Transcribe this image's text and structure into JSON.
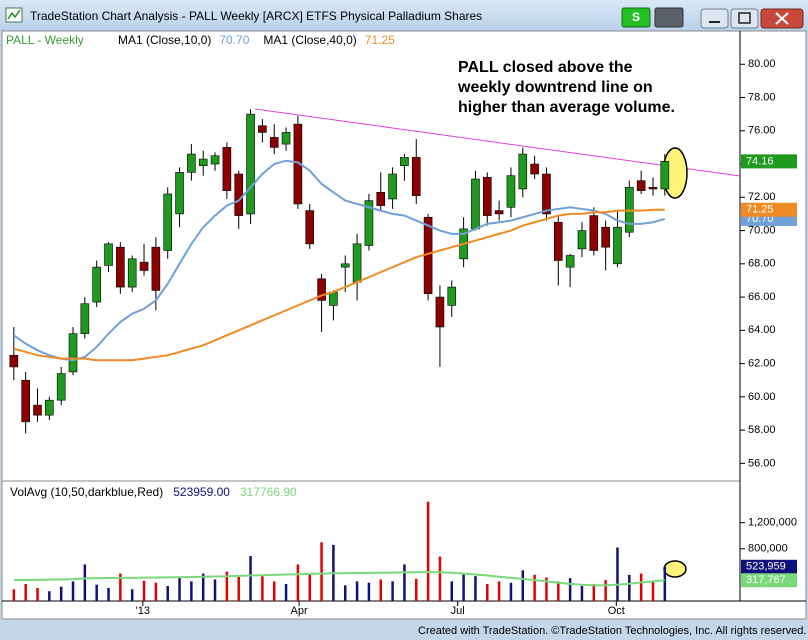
{
  "window": {
    "title": "TradeStation Chart Analysis - PALL Weekly [ARCX] ETFS Physical Palladium Shares",
    "symbol_button": "S"
  },
  "footer": "Created with TradeStation. ©TradeStation Technologies, Inc. All rights reserved.",
  "chart_data": [
    {
      "type": "candlestick",
      "title": "PALL - Weekly",
      "title_color": "#3a9a3a",
      "annotation": [
        "PALL closed above the",
        "weekly downtrend line on",
        "higher than average volume."
      ],
      "up_color": "#1f9a1f",
      "down_color": "#8b0000",
      "open": [
        62.5,
        61.0,
        59.5,
        58.9,
        59.8,
        61.5,
        63.8,
        65.7,
        67.9,
        69.0,
        66.6,
        68.1,
        69.0,
        68.8,
        71.0,
        73.5,
        73.9,
        74.0,
        75.0,
        73.4,
        71.0,
        76.3,
        75.6,
        75.2,
        76.4,
        71.2,
        67.1,
        65.5,
        67.8,
        66.9,
        69.1,
        72.3,
        71.9,
        73.9,
        74.4,
        70.8,
        66.0,
        65.5,
        68.3,
        70.1,
        73.2,
        71.2,
        71.4,
        72.5,
        74.0,
        73.4,
        70.5,
        67.8,
        68.9,
        70.9,
        70.2,
        68.0,
        69.9,
        73.0,
        72.6,
        72.5
      ],
      "high": [
        64.2,
        61.5,
        60.5,
        60.0,
        61.8,
        64.2,
        66.0,
        68.2,
        69.3,
        69.3,
        68.5,
        69.2,
        69.6,
        72.6,
        73.8,
        75.2,
        74.8,
        74.7,
        75.3,
        73.6,
        77.3,
        76.7,
        76.4,
        76.2,
        76.9,
        71.6,
        67.4,
        66.4,
        68.5,
        69.8,
        72.2,
        73.5,
        73.8,
        74.6,
        75.5,
        71.0,
        66.7,
        67.0,
        70.8,
        73.6,
        73.5,
        71.8,
        73.8,
        75.0,
        74.5,
        73.8,
        70.9,
        68.6,
        70.5,
        71.4,
        70.6,
        71.2,
        73.0,
        73.6,
        73.2,
        74.6
      ],
      "low": [
        61.0,
        57.8,
        58.5,
        58.6,
        59.5,
        61.3,
        63.5,
        65.4,
        67.5,
        66.2,
        66.3,
        67.3,
        65.2,
        68.3,
        70.2,
        73.0,
        73.3,
        73.6,
        71.9,
        70.1,
        70.4,
        75.3,
        74.6,
        74.8,
        71.3,
        68.9,
        63.9,
        64.6,
        66.3,
        65.8,
        68.8,
        71.2,
        71.3,
        73.0,
        71.6,
        65.8,
        61.8,
        64.8,
        67.8,
        70.0,
        70.3,
        70.6,
        70.8,
        72.0,
        73.1,
        70.6,
        66.7,
        66.6,
        68.4,
        68.5,
        67.6,
        67.8,
        69.6,
        72.2,
        72.1,
        72.1
      ],
      "close": [
        61.8,
        58.5,
        58.9,
        59.8,
        61.4,
        63.8,
        65.6,
        67.8,
        69.2,
        66.6,
        68.3,
        67.6,
        66.4,
        72.2,
        73.5,
        74.6,
        74.3,
        74.5,
        72.4,
        70.9,
        77.0,
        75.9,
        75.0,
        75.9,
        71.6,
        69.2,
        65.8,
        66.3,
        68.0,
        69.2,
        71.8,
        71.5,
        73.4,
        74.4,
        72.1,
        66.2,
        64.2,
        66.6,
        70.1,
        73.1,
        70.9,
        71.0,
        73.3,
        74.6,
        73.4,
        71.0,
        68.2,
        68.5,
        70.0,
        68.8,
        69.0,
        70.2,
        72.6,
        72.4,
        72.5,
        74.16
      ],
      "series": [
        {
          "name": "MA1 (Close,10,0)",
          "color": "#6fa0d8",
          "last_label": "70.70",
          "values": [
            63.7,
            63.2,
            62.8,
            62.5,
            62.3,
            62.2,
            62.4,
            63.0,
            63.8,
            64.5,
            65.0,
            65.3,
            65.8,
            66.8,
            68.0,
            69.2,
            70.2,
            70.9,
            71.5,
            71.8,
            72.6,
            73.4,
            74.0,
            74.2,
            74.1,
            73.6,
            72.8,
            72.3,
            71.8,
            71.6,
            71.4,
            71.2,
            71.0,
            70.9,
            70.6,
            70.3,
            70.0,
            69.8,
            69.8,
            70.1,
            70.4,
            70.5,
            70.6,
            70.8,
            71.0,
            71.2,
            71.3,
            71.4,
            71.3,
            71.2,
            71.0,
            70.6,
            70.4,
            70.4,
            70.5,
            70.7
          ]
        },
        {
          "name": "MA1 (Close,40,0)",
          "color": "#f08a24",
          "last_label": "71.25",
          "values": [
            62.9,
            62.7,
            62.5,
            62.4,
            62.3,
            62.3,
            62.3,
            62.2,
            62.2,
            62.2,
            62.2,
            62.3,
            62.4,
            62.5,
            62.7,
            62.9,
            63.1,
            63.4,
            63.7,
            64.0,
            64.3,
            64.6,
            64.9,
            65.2,
            65.5,
            65.8,
            66.1,
            66.3,
            66.6,
            66.9,
            67.2,
            67.5,
            67.8,
            68.1,
            68.4,
            68.6,
            68.8,
            69.0,
            69.2,
            69.4,
            69.6,
            69.8,
            70.0,
            70.3,
            70.5,
            70.7,
            70.9,
            71.0,
            71.0,
            71.1,
            71.1,
            71.2,
            71.2,
            71.2,
            71.25,
            71.25
          ]
        }
      ],
      "xlim": [
        -1,
        60
      ],
      "xticks": [
        {
          "value": 10.9,
          "label": "'13"
        },
        {
          "value": 24.1,
          "label": "Apr"
        },
        {
          "value": 37.5,
          "label": "Jul"
        },
        {
          "value": 50.9,
          "label": "Oct"
        }
      ],
      "ylim": [
        55,
        82
      ],
      "yticks": [
        {
          "value": 56,
          "label": "56.00"
        },
        {
          "value": 58,
          "label": "58.00"
        },
        {
          "value": 60,
          "label": "60.00"
        },
        {
          "value": 62,
          "label": "62.00"
        },
        {
          "value": 64,
          "label": "64.00"
        },
        {
          "value": 66,
          "label": "66.00"
        },
        {
          "value": 68,
          "label": "68.00"
        },
        {
          "value": 70,
          "label": "70.00"
        },
        {
          "value": 72,
          "label": "72.00"
        },
        {
          "value": 74,
          "label": "74.00"
        },
        {
          "value": 76,
          "label": "76.00"
        },
        {
          "value": 78,
          "label": "78.00"
        },
        {
          "value": 80,
          "label": "80.00"
        }
      ]
    },
    {
      "type": "bar",
      "title": "VolAvg (10,50,darkblue,Red)",
      "up_color": "#10107a",
      "down_color": "#e00000",
      "values": [
        180000,
        260000,
        200000,
        150000,
        220000,
        300000,
        560000,
        250000,
        200000,
        420000,
        180000,
        310000,
        280000,
        230000,
        350000,
        300000,
        420000,
        330000,
        450000,
        370000,
        690000,
        380000,
        300000,
        260000,
        560000,
        420000,
        900000,
        860000,
        240000,
        300000,
        280000,
        330000,
        300000,
        560000,
        340000,
        1520000,
        680000,
        300000,
        420000,
        380000,
        260000,
        300000,
        280000,
        470000,
        400000,
        360000,
        300000,
        350000,
        230000,
        260000,
        320000,
        820000,
        400000,
        420000,
        300000,
        523959
      ],
      "last_labels": [
        "523959.00",
        "523,959"
      ],
      "average": {
        "color": "#7ad97a",
        "last_labels": [
          "317766.90",
          "317,767"
        ],
        "values": [
          320000,
          322000,
          325000,
          328000,
          330000,
          335000,
          345000,
          350000,
          352000,
          355000,
          355000,
          358000,
          360000,
          362000,
          365000,
          368000,
          372000,
          376000,
          380000,
          384000,
          390000,
          395000,
          400000,
          405000,
          410000,
          415000,
          420000,
          425000,
          425000,
          428000,
          430000,
          432000,
          435000,
          438000,
          440000,
          442000,
          440000,
          432000,
          420000,
          405000,
          390000,
          372000,
          355000,
          338000,
          320000,
          300000,
          280000,
          262000,
          248000,
          242000,
          240000,
          250000,
          265000,
          285000,
          300000,
          317766.9
        ]
      },
      "ylim": [
        0,
        1700000
      ],
      "yticks": [
        {
          "value": 800000,
          "label": "800,000"
        },
        {
          "value": 1200000,
          "label": "1,200,000"
        }
      ]
    }
  ]
}
